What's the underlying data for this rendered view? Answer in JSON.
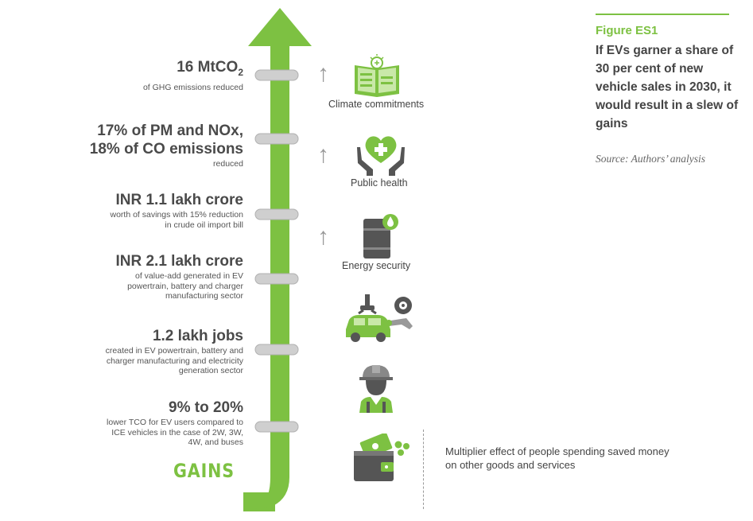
{
  "figure": {
    "label": "Figure ES1",
    "title": "If EVs garner a share of 30 per cent of new vehicle sales in 2030, it would result in a slew of gains",
    "source": "Source: Authors’ analysis"
  },
  "gains_label": "GAINS",
  "stats": [
    {
      "value_main": "16 MtCO",
      "value_sub": "2",
      "desc": "of GHG emissions reduced"
    },
    {
      "value_line1": "17% of PM and NOx,",
      "value_line2": "18% of CO emissions",
      "desc": "reduced"
    },
    {
      "value": "INR 1.1 lakh crore",
      "desc": "worth of savings with 15% reduction in crude oil import bill"
    },
    {
      "value": "INR 2.1 lakh crore",
      "desc": "of value-add generated in EV powertrain, battery and charger manufacturing sector"
    },
    {
      "value": "1.2 lakh jobs",
      "desc": "created in EV powertrain, battery and charger manufacturing and electricity generation sector"
    },
    {
      "value": "9% to 20%",
      "desc": "lower TCO for EV users compared to ICE vehicles in the case of 2W, 3W, 4W, and buses"
    }
  ],
  "icons": [
    {
      "name": "climate-commitments-icon",
      "label": "Climate commitments"
    },
    {
      "name": "public-health-icon",
      "label": "Public health"
    },
    {
      "name": "energy-security-icon",
      "label": "Energy security"
    },
    {
      "name": "ev-manufacturing-icon"
    },
    {
      "name": "worker-icon"
    },
    {
      "name": "wallet-money-icon"
    }
  ],
  "multiplier_text": "Multiplier effect of people spending saved money on other goods and services",
  "colors": {
    "green": "#7dc142",
    "text": "#4a4a4a",
    "ring": "#c8c8c8",
    "arrow_grey": "#999999"
  }
}
